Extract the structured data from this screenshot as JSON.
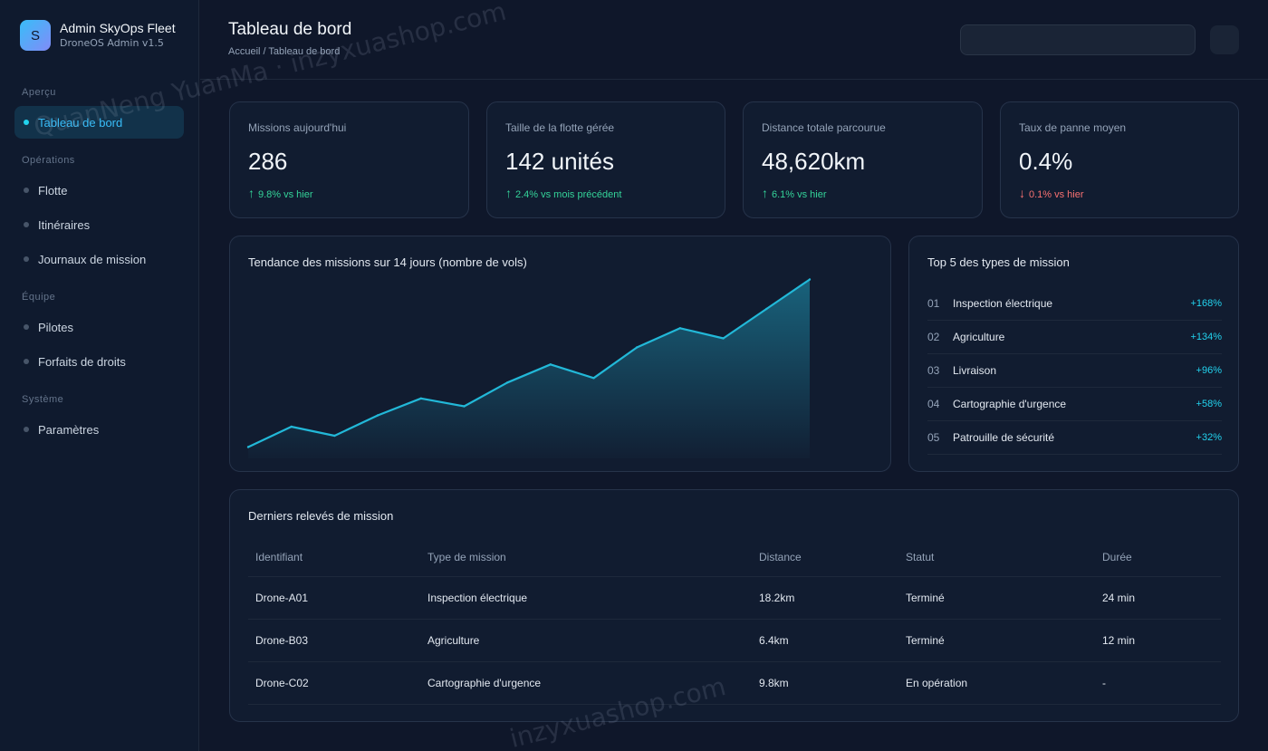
{
  "brand": {
    "logo_letter": "S",
    "title": "Admin SkyOps Fleet",
    "subtitle": "DroneOS Admin v1.5"
  },
  "sidebar": {
    "sections": [
      {
        "label": "Aperçu",
        "items": [
          {
            "label": "Tableau de bord",
            "active": true
          }
        ]
      },
      {
        "label": "Opérations",
        "items": [
          {
            "label": "Flotte"
          },
          {
            "label": "Itinéraires"
          },
          {
            "label": "Journaux de mission"
          }
        ]
      },
      {
        "label": "Équipe",
        "items": [
          {
            "label": "Pilotes"
          },
          {
            "label": "Forfaits de droits"
          }
        ]
      },
      {
        "label": "Système",
        "items": [
          {
            "label": "Paramètres"
          }
        ]
      }
    ]
  },
  "header": {
    "title": "Tableau de bord",
    "breadcrumb": "Accueil / Tableau de bord",
    "search_value": ""
  },
  "kpis": [
    {
      "label": "Missions aujourd'hui",
      "value": "286",
      "arrow": "↑",
      "delta": "9.8% vs hier",
      "trend": "up"
    },
    {
      "label": "Taille de la flotte gérée",
      "value": "142 unités",
      "arrow": "↑",
      "delta": "2.4% vs mois précédent",
      "trend": "up"
    },
    {
      "label": "Distance totale parcourue",
      "value": "48,620km",
      "arrow": "↑",
      "delta": "6.1% vs hier",
      "trend": "up"
    },
    {
      "label": "Taux de panne moyen",
      "value": "0.4%",
      "arrow": "↓",
      "delta": "0.1% vs hier",
      "trend": "down"
    }
  ],
  "trend_chart": {
    "title": "Tendance des missions sur 14 jours (nombre de vols)",
    "color": "#22b8d8"
  },
  "chart_data": {
    "type": "area",
    "title": "Tendance des missions sur 14 jours (nombre de vols)",
    "x": [
      1,
      2,
      3,
      4,
      5,
      6,
      7,
      8,
      9,
      10,
      11,
      12,
      13,
      14
    ],
    "values": [
      200,
      218,
      210,
      228,
      243,
      236,
      257,
      273,
      261,
      288,
      305,
      296,
      322,
      348
    ],
    "ylim": [
      190,
      350
    ],
    "grid": false
  },
  "top_types": {
    "title": "Top 5 des types de mission",
    "items": [
      {
        "rank": "01",
        "name": "Inspection électrique",
        "growth": "+168%"
      },
      {
        "rank": "02",
        "name": "Agriculture",
        "growth": "+134%"
      },
      {
        "rank": "03",
        "name": "Livraison",
        "growth": "+96%"
      },
      {
        "rank": "04",
        "name": "Cartographie d'urgence",
        "growth": "+58%"
      },
      {
        "rank": "05",
        "name": "Patrouille de sécurité",
        "growth": "+32%"
      }
    ]
  },
  "records": {
    "title": "Derniers relevés de mission",
    "columns": [
      "Identifiant",
      "Type de mission",
      "Distance",
      "Statut",
      "Durée"
    ],
    "rows": [
      {
        "id": "Drone-A01",
        "type": "Inspection électrique",
        "distance": "18.2km",
        "status": "Terminé",
        "status_kind": "done",
        "duration": "24 min"
      },
      {
        "id": "Drone-B03",
        "type": "Agriculture",
        "distance": "6.4km",
        "status": "Terminé",
        "status_kind": "done",
        "duration": "12 min"
      },
      {
        "id": "Drone-C02",
        "type": "Cartographie d'urgence",
        "distance": "9.8km",
        "status": "En opération",
        "status_kind": "running",
        "duration": "-"
      }
    ]
  },
  "watermarks": [
    "QuanNeng YuanMa · inzyxuashop.com",
    "inzyxuashop.com"
  ]
}
